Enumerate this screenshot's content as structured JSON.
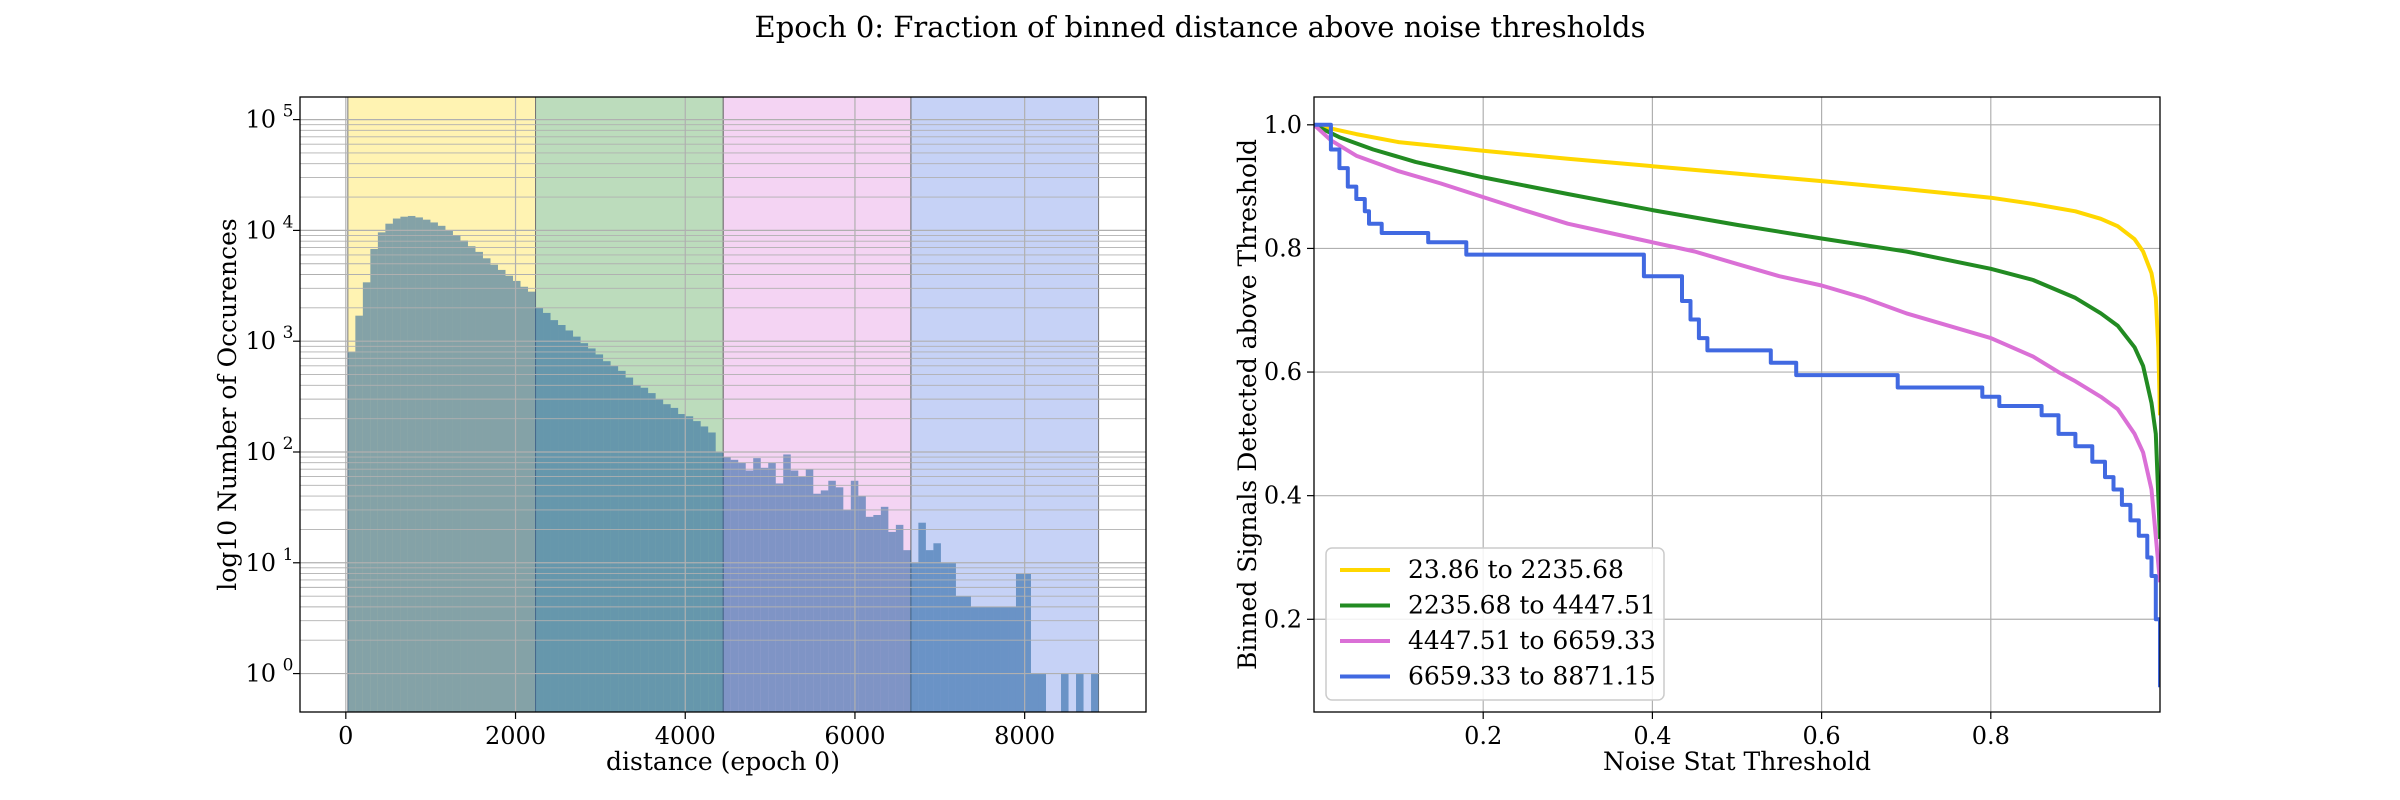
{
  "figure": {
    "suptitle": "Epoch 0: Fraction of binned distance above noise thresholds"
  },
  "chart_data": [
    {
      "type": "bar",
      "subtype": "histogram",
      "xlabel": "distance (epoch 0)",
      "ylabel": "log10 Number of Occurences",
      "yscale": "log",
      "xlim": [
        -540,
        9430
      ],
      "ylim": [
        0.45,
        160000
      ],
      "xticks": [
        0,
        2000,
        4000,
        6000,
        8000
      ],
      "xtick_labels": [
        "0",
        "2000",
        "4000",
        "6000",
        "8000"
      ],
      "yticks": [
        1,
        10,
        100,
        1000,
        10000,
        100000
      ],
      "ytick_labels": [
        "10^0",
        "10^1",
        "10^2",
        "10^3",
        "10^4",
        "10^5"
      ],
      "grid": true,
      "bar_color": "#1f5f9e",
      "regions": [
        {
          "x0": 23.86,
          "x1": 2235.68,
          "color": "#ffd700"
        },
        {
          "x0": 2235.68,
          "x1": 4447.51,
          "color": "#228b22"
        },
        {
          "x0": 4447.51,
          "x1": 6659.33,
          "color": "#da70d6"
        },
        {
          "x0": 6659.33,
          "x1": 8871.15,
          "color": "#4169e1"
        }
      ],
      "bins": {
        "start": 23.86,
        "width": 88.47
      },
      "counts": [
        800,
        1700,
        3400,
        6800,
        9600,
        11500,
        12800,
        13300,
        13500,
        13100,
        12500,
        11800,
        11000,
        10000,
        9000,
        8100,
        7200,
        6400,
        5600,
        4900,
        4400,
        3900,
        3500,
        3100,
        2800,
        2000,
        1800,
        1550,
        1400,
        1250,
        1100,
        960,
        860,
        760,
        660,
        600,
        540,
        470,
        400,
        380,
        340,
        300,
        270,
        250,
        220,
        210,
        190,
        170,
        150,
        100,
        90,
        85,
        80,
        68,
        88,
        72,
        80,
        52,
        95,
        68,
        60,
        70,
        42,
        45,
        55,
        48,
        30,
        55,
        40,
        26,
        27,
        32,
        19,
        22,
        13,
        10,
        23,
        13,
        15,
        10,
        10,
        5,
        5,
        4,
        4,
        4,
        4,
        4,
        4,
        8,
        8,
        1,
        1,
        0,
        0,
        1,
        0,
        1,
        0,
        1
      ]
    },
    {
      "type": "line",
      "xlabel": "Noise Stat Threshold",
      "ylabel": "Binned Signals Detected above Threshold",
      "xlim": [
        0.0,
        1.0
      ],
      "ylim": [
        0.05,
        1.045
      ],
      "xticks": [
        0.2,
        0.4,
        0.6,
        0.8
      ],
      "xtick_labels": [
        "0.2",
        "0.4",
        "0.6",
        "0.8"
      ],
      "yticks": [
        0.2,
        0.4,
        0.6,
        0.8,
        1.0
      ],
      "ytick_labels": [
        "0.2",
        "0.4",
        "0.6",
        "0.8",
        "1.0"
      ],
      "grid": true,
      "legend_position": "lower-left",
      "series": [
        {
          "name": "23.86 to 2235.68",
          "color": "#ffd700",
          "step": false,
          "points": [
            [
              0,
              1.0
            ],
            [
              0.05,
              0.985
            ],
            [
              0.1,
              0.972
            ],
            [
              0.2,
              0.958
            ],
            [
              0.3,
              0.945
            ],
            [
              0.4,
              0.933
            ],
            [
              0.5,
              0.921
            ],
            [
              0.6,
              0.909
            ],
            [
              0.7,
              0.896
            ],
            [
              0.8,
              0.882
            ],
            [
              0.85,
              0.872
            ],
            [
              0.9,
              0.86
            ],
            [
              0.93,
              0.848
            ],
            [
              0.95,
              0.836
            ],
            [
              0.97,
              0.815
            ],
            [
              0.98,
              0.795
            ],
            [
              0.99,
              0.76
            ],
            [
              0.995,
              0.72
            ],
            [
              0.998,
              0.64
            ],
            [
              1.0,
              0.53
            ]
          ]
        },
        {
          "name": "2235.68 to 4447.51",
          "color": "#228b22",
          "step": false,
          "points": [
            [
              0,
              1.0
            ],
            [
              0.03,
              0.98
            ],
            [
              0.07,
              0.96
            ],
            [
              0.12,
              0.94
            ],
            [
              0.2,
              0.915
            ],
            [
              0.3,
              0.888
            ],
            [
              0.4,
              0.862
            ],
            [
              0.5,
              0.838
            ],
            [
              0.6,
              0.816
            ],
            [
              0.7,
              0.795
            ],
            [
              0.8,
              0.767
            ],
            [
              0.85,
              0.749
            ],
            [
              0.9,
              0.72
            ],
            [
              0.93,
              0.695
            ],
            [
              0.95,
              0.675
            ],
            [
              0.97,
              0.64
            ],
            [
              0.98,
              0.61
            ],
            [
              0.99,
              0.55
            ],
            [
              0.995,
              0.5
            ],
            [
              1.0,
              0.33
            ]
          ]
        },
        {
          "name": "4447.51 to 6659.33",
          "color": "#da70d6",
          "step": false,
          "points": [
            [
              0,
              1.0
            ],
            [
              0.02,
              0.975
            ],
            [
              0.05,
              0.95
            ],
            [
              0.08,
              0.935
            ],
            [
              0.1,
              0.925
            ],
            [
              0.15,
              0.905
            ],
            [
              0.2,
              0.883
            ],
            [
              0.25,
              0.861
            ],
            [
              0.3,
              0.84
            ],
            [
              0.35,
              0.825
            ],
            [
              0.4,
              0.81
            ],
            [
              0.45,
              0.795
            ],
            [
              0.5,
              0.775
            ],
            [
              0.55,
              0.755
            ],
            [
              0.6,
              0.74
            ],
            [
              0.65,
              0.72
            ],
            [
              0.7,
              0.695
            ],
            [
              0.75,
              0.675
            ],
            [
              0.8,
              0.655
            ],
            [
              0.85,
              0.625
            ],
            [
              0.88,
              0.6
            ],
            [
              0.9,
              0.585
            ],
            [
              0.93,
              0.56
            ],
            [
              0.95,
              0.54
            ],
            [
              0.97,
              0.5
            ],
            [
              0.98,
              0.47
            ],
            [
              0.99,
              0.41
            ],
            [
              1.0,
              0.26
            ]
          ]
        },
        {
          "name": "6659.33 to 8871.15",
          "color": "#4169e1",
          "step": true,
          "points": [
            [
              0,
              1.0
            ],
            [
              0.02,
              1.0
            ],
            [
              0.02,
              0.96
            ],
            [
              0.03,
              0.96
            ],
            [
              0.03,
              0.93
            ],
            [
              0.04,
              0.93
            ],
            [
              0.04,
              0.9
            ],
            [
              0.05,
              0.9
            ],
            [
              0.05,
              0.88
            ],
            [
              0.06,
              0.88
            ],
            [
              0.06,
              0.86
            ],
            [
              0.065,
              0.86
            ],
            [
              0.065,
              0.84
            ],
            [
              0.08,
              0.84
            ],
            [
              0.08,
              0.825
            ],
            [
              0.135,
              0.825
            ],
            [
              0.135,
              0.81
            ],
            [
              0.18,
              0.81
            ],
            [
              0.18,
              0.79
            ],
            [
              0.39,
              0.79
            ],
            [
              0.39,
              0.755
            ],
            [
              0.435,
              0.755
            ],
            [
              0.435,
              0.715
            ],
            [
              0.445,
              0.715
            ],
            [
              0.445,
              0.685
            ],
            [
              0.455,
              0.685
            ],
            [
              0.455,
              0.655
            ],
            [
              0.465,
              0.655
            ],
            [
              0.465,
              0.635
            ],
            [
              0.54,
              0.635
            ],
            [
              0.54,
              0.615
            ],
            [
              0.57,
              0.615
            ],
            [
              0.57,
              0.595
            ],
            [
              0.69,
              0.595
            ],
            [
              0.69,
              0.575
            ],
            [
              0.79,
              0.575
            ],
            [
              0.79,
              0.56
            ],
            [
              0.81,
              0.56
            ],
            [
              0.81,
              0.545
            ],
            [
              0.86,
              0.545
            ],
            [
              0.86,
              0.53
            ],
            [
              0.88,
              0.53
            ],
            [
              0.88,
              0.5
            ],
            [
              0.9,
              0.5
            ],
            [
              0.9,
              0.48
            ],
            [
              0.92,
              0.48
            ],
            [
              0.92,
              0.455
            ],
            [
              0.935,
              0.455
            ],
            [
              0.935,
              0.43
            ],
            [
              0.945,
              0.43
            ],
            [
              0.945,
              0.41
            ],
            [
              0.955,
              0.41
            ],
            [
              0.955,
              0.385
            ],
            [
              0.965,
              0.385
            ],
            [
              0.965,
              0.36
            ],
            [
              0.975,
              0.36
            ],
            [
              0.975,
              0.335
            ],
            [
              0.985,
              0.335
            ],
            [
              0.985,
              0.3
            ],
            [
              0.99,
              0.3
            ],
            [
              0.99,
              0.27
            ],
            [
              0.995,
              0.27
            ],
            [
              0.995,
              0.2
            ],
            [
              1.0,
              0.2
            ],
            [
              1.0,
              0.09
            ]
          ]
        }
      ]
    }
  ]
}
